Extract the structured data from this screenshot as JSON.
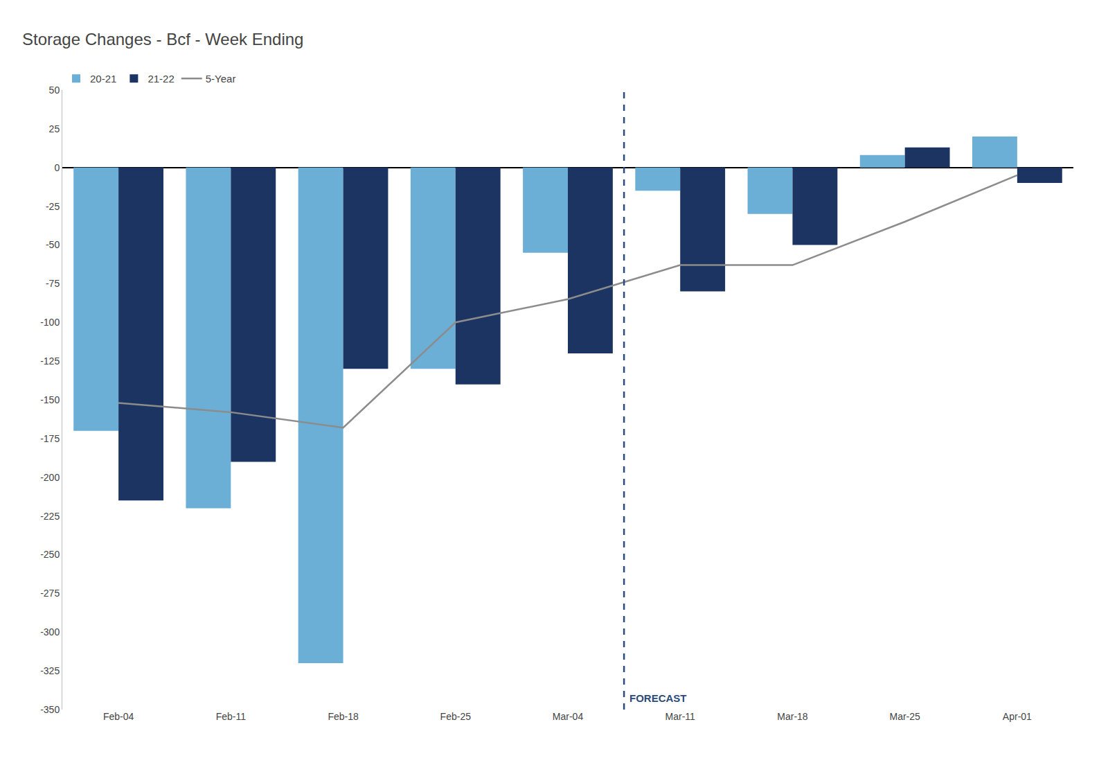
{
  "chart_data": {
    "type": "bar",
    "title": "Storage Changes - Bcf - Week Ending",
    "categories": [
      "Feb-04",
      "Feb-11",
      "Feb-18",
      "Feb-25",
      "Mar-04",
      "Mar-11",
      "Mar-18",
      "Mar-25",
      "Apr-01"
    ],
    "series": [
      {
        "name": "20-21",
        "type": "bar",
        "color": "#6baed6",
        "values": [
          -170,
          -220,
          -320,
          -130,
          -55,
          -15,
          -30,
          8,
          20
        ]
      },
      {
        "name": "21-22",
        "type": "bar",
        "color": "#1c3461",
        "values": [
          -215,
          -190,
          -130,
          -140,
          -120,
          -80,
          -50,
          13,
          -10
        ]
      },
      {
        "name": "5-Year",
        "type": "line",
        "color": "#8c8c8c",
        "values": [
          -152,
          -158,
          -168,
          -100,
          -85,
          -63,
          -63,
          -35,
          -5
        ]
      }
    ],
    "annotations": [
      {
        "text": "FORECAST",
        "after": "Mar-04",
        "color": "#2c4a7c"
      }
    ],
    "ylim": [
      -350,
      50
    ],
    "yticks": [
      50,
      25,
      0,
      -25,
      -50,
      -75,
      -100,
      -125,
      -150,
      -175,
      -200,
      -225,
      -250,
      -275,
      -300,
      -325,
      -350
    ],
    "grid": false,
    "legend": "upper left"
  }
}
